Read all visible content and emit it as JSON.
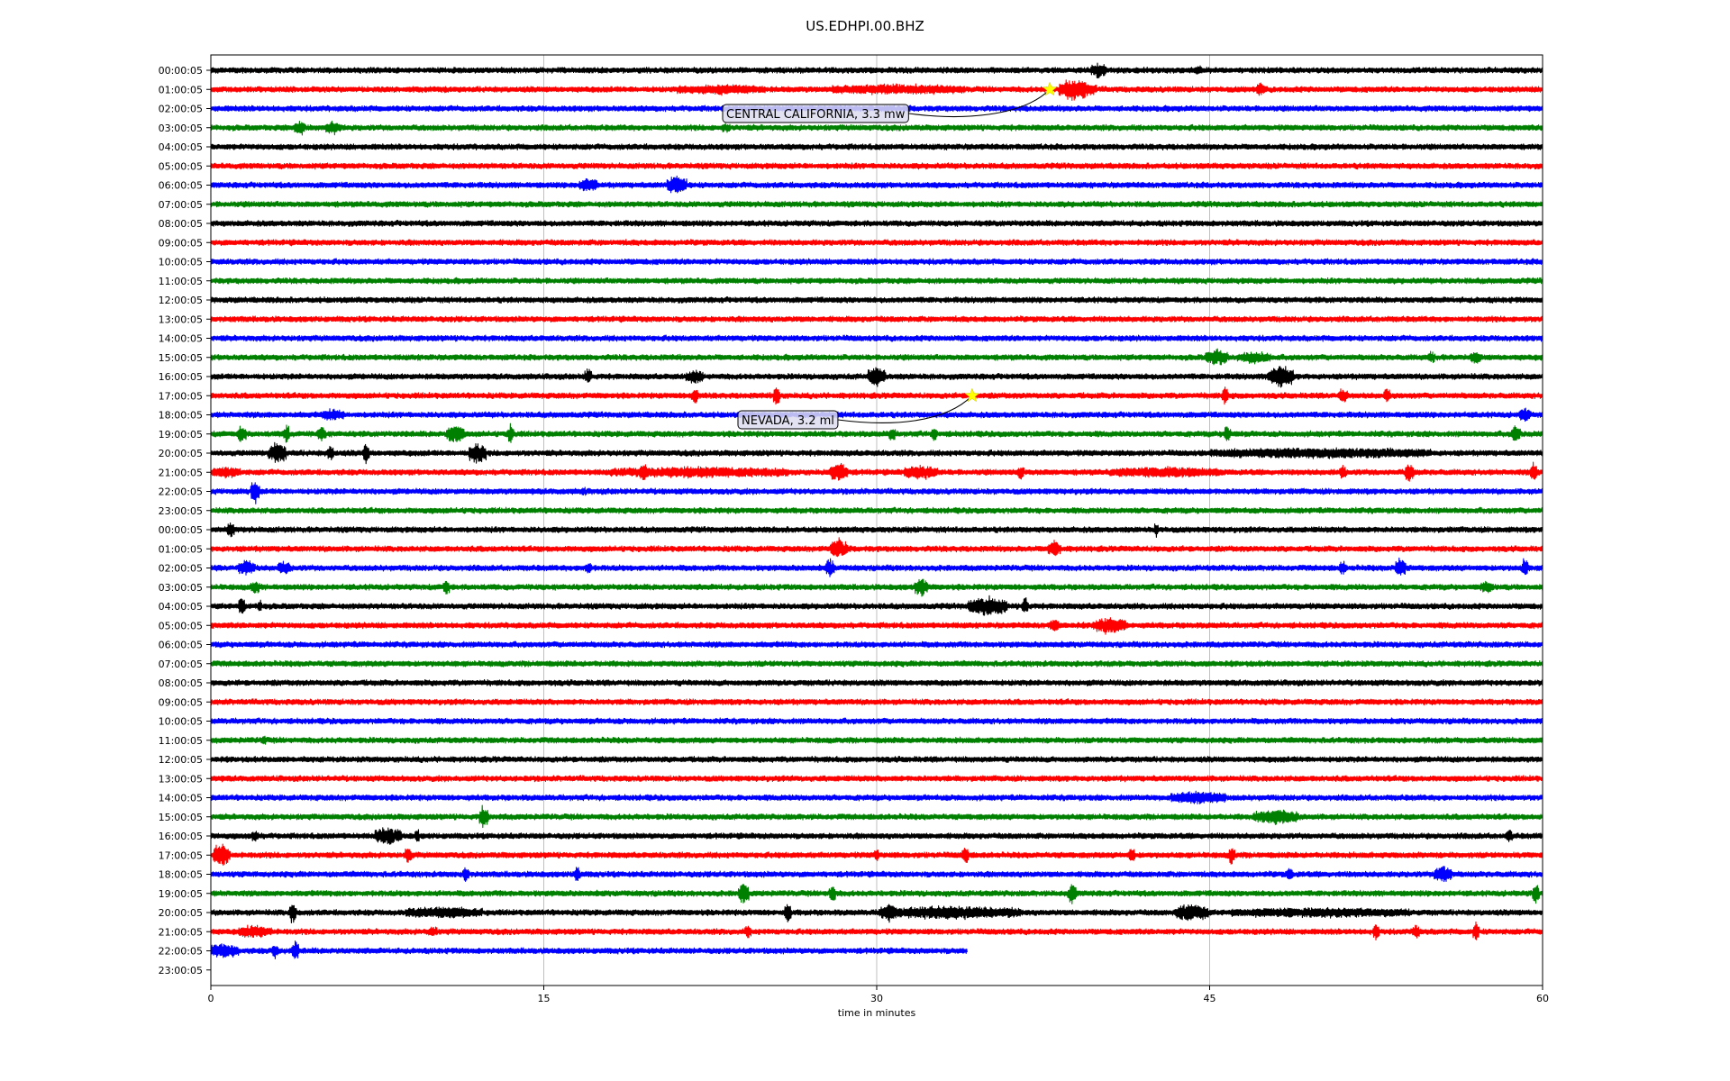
{
  "chart_data": {
    "type": "line",
    "title": "US.EDHPI.00.BHZ",
    "xlabel": "time in minutes",
    "ylabel": "",
    "xlim": [
      0,
      60
    ],
    "xticks": [
      "0",
      "15",
      "30",
      "45",
      "60"
    ],
    "xtick_values": [
      0,
      15,
      30,
      45,
      60
    ],
    "grid": "vertical lines at x ticks",
    "series_colors": [
      "#000000",
      "#ff0000",
      "#0000ff",
      "#008000"
    ],
    "row_labels": [
      "00:00:05",
      "01:00:05",
      "02:00:05",
      "03:00:05",
      "04:00:05",
      "05:00:05",
      "06:00:05",
      "07:00:05",
      "08:00:05",
      "09:00:05",
      "10:00:05",
      "11:00:05",
      "12:00:05",
      "13:00:05",
      "14:00:05",
      "15:00:05",
      "16:00:05",
      "17:00:05",
      "18:00:05",
      "19:00:05",
      "20:00:05",
      "21:00:05",
      "22:00:05",
      "23:00:05",
      "00:00:05",
      "01:00:05",
      "02:00:05",
      "03:00:05",
      "04:00:05",
      "05:00:05",
      "06:00:05",
      "07:00:05",
      "08:00:05",
      "09:00:05",
      "10:00:05",
      "11:00:05",
      "12:00:05",
      "13:00:05",
      "14:00:05",
      "15:00:05",
      "16:00:05",
      "17:00:05",
      "18:00:05",
      "19:00:05",
      "20:00:05",
      "21:00:05",
      "22:00:05",
      "23:00:05"
    ],
    "last_row_end_minute": 34.1,
    "events": [
      {
        "row": 1,
        "minute": 37.8,
        "label": "CENTRAL CALIFORNIA, 3.3 mw",
        "marker_color": "#ffff00"
      },
      {
        "row": 17,
        "minute": 34.3,
        "label": "NEVADA, 3.2 ml",
        "marker_color": "#ffff00"
      }
    ],
    "bursts": [
      [
        0,
        40,
        0.7,
        0.6
      ],
      [
        0,
        44.5,
        0.3,
        0.4
      ],
      [
        1,
        38.8,
        1.2,
        1.0
      ],
      [
        1,
        39.5,
        0.8,
        0.5
      ],
      [
        1,
        23,
        4,
        0.3
      ],
      [
        1,
        31,
        6,
        0.3
      ],
      [
        1,
        47.3,
        0.4,
        0.5
      ],
      [
        3,
        4,
        0.5,
        0.7
      ],
      [
        3,
        5.5,
        0.7,
        0.5
      ],
      [
        3,
        23.2,
        0.4,
        0.3
      ],
      [
        6,
        17,
        0.8,
        0.6
      ],
      [
        6,
        21,
        0.9,
        0.9
      ],
      [
        15,
        45.3,
        1.0,
        0.7
      ],
      [
        15,
        47,
        1.5,
        0.4
      ],
      [
        15,
        55,
        0.3,
        0.5
      ],
      [
        15,
        57,
        0.5,
        0.4
      ],
      [
        16,
        17,
        0.3,
        0.8
      ],
      [
        16,
        21.8,
        0.8,
        0.5
      ],
      [
        16,
        30,
        0.8,
        0.9
      ],
      [
        16,
        48.2,
        1.2,
        1.0
      ],
      [
        17,
        21.8,
        0.3,
        0.8
      ],
      [
        17,
        25.5,
        0.3,
        0.9
      ],
      [
        17,
        45.7,
        0.3,
        0.9
      ],
      [
        17,
        51,
        0.4,
        0.6
      ],
      [
        17,
        53,
        0.3,
        0.6
      ],
      [
        18,
        5.5,
        1,
        0.4
      ],
      [
        18,
        59.2,
        0.5,
        0.6
      ],
      [
        19,
        1.4,
        0.4,
        0.8
      ],
      [
        19,
        3.4,
        0.3,
        0.9
      ],
      [
        19,
        5,
        0.4,
        0.6
      ],
      [
        19,
        11,
        0.8,
        0.9
      ],
      [
        19,
        13.5,
        0.3,
        0.9
      ],
      [
        19,
        30.7,
        0.3,
        0.6
      ],
      [
        19,
        32.6,
        0.3,
        0.6
      ],
      [
        19,
        45.8,
        0.3,
        0.9
      ],
      [
        19,
        58.8,
        0.4,
        0.8
      ],
      [
        20,
        3,
        0.8,
        1.0
      ],
      [
        20,
        5.4,
        0.3,
        0.8
      ],
      [
        20,
        7,
        0.3,
        1.0
      ],
      [
        20,
        12,
        0.8,
        1.0
      ],
      [
        20,
        50,
        10,
        0.35
      ],
      [
        21,
        0.7,
        1.3,
        0.4
      ],
      [
        21,
        19.5,
        0.3,
        0.6
      ],
      [
        21,
        28.3,
        0.8,
        1.0
      ],
      [
        21,
        22,
        8,
        0.35
      ],
      [
        21,
        32,
        1.5,
        0.6
      ],
      [
        21,
        36.5,
        0.3,
        0.6
      ],
      [
        21,
        43,
        5,
        0.35
      ],
      [
        21,
        51,
        0.3,
        0.6
      ],
      [
        21,
        54,
        0.4,
        0.9
      ],
      [
        21,
        59.6,
        0.3,
        1.0
      ],
      [
        22,
        2,
        0.4,
        1.1
      ],
      [
        22,
        16.8,
        0.2,
        0.3
      ],
      [
        24,
        0.9,
        0.3,
        0.8
      ],
      [
        24,
        42.6,
        0.2,
        0.6
      ],
      [
        25,
        28.3,
        0.8,
        0.9
      ],
      [
        25,
        38,
        0.6,
        0.7
      ],
      [
        26,
        1.6,
        0.8,
        0.6
      ],
      [
        26,
        3.3,
        0.6,
        0.5
      ],
      [
        26,
        17,
        0.3,
        0.5
      ],
      [
        26,
        27.9,
        0.4,
        0.8
      ],
      [
        26,
        51,
        0.3,
        0.6
      ],
      [
        26,
        53.6,
        0.5,
        1.0
      ],
      [
        26,
        59.2,
        0.3,
        1.0
      ],
      [
        27,
        2,
        0.4,
        0.5
      ],
      [
        27,
        10.6,
        0.3,
        0.7
      ],
      [
        27,
        32,
        0.6,
        0.9
      ],
      [
        27,
        57.5,
        0.6,
        0.4
      ],
      [
        28,
        1.4,
        0.3,
        0.8
      ],
      [
        28,
        2.2,
        0.2,
        0.6
      ],
      [
        28,
        35,
        1.8,
        0.8
      ],
      [
        28,
        36.7,
        0.3,
        0.9
      ],
      [
        29,
        38,
        0.4,
        0.5
      ],
      [
        29,
        40.5,
        1.5,
        0.7
      ],
      [
        35,
        2.4,
        0.2,
        0.4
      ],
      [
        38,
        44.5,
        2.5,
        0.5
      ],
      [
        39,
        12.3,
        0.4,
        1.1
      ],
      [
        39,
        48,
        2,
        0.6
      ],
      [
        40,
        2,
        0.3,
        0.5
      ],
      [
        40,
        8,
        1.2,
        0.8
      ],
      [
        40,
        9.3,
        0.2,
        0.6
      ],
      [
        40,
        58.5,
        0.3,
        0.5
      ],
      [
        41,
        0.5,
        0.8,
        1.2
      ],
      [
        41,
        8.9,
        0.3,
        0.8
      ],
      [
        41,
        30,
        0.2,
        0.6
      ],
      [
        41,
        34,
        0.3,
        0.8
      ],
      [
        41,
        41.5,
        0.3,
        0.6
      ],
      [
        41,
        46,
        0.3,
        0.8
      ],
      [
        42,
        11.5,
        0.3,
        0.6
      ],
      [
        42,
        16.5,
        0.3,
        0.7
      ],
      [
        42,
        48.6,
        0.3,
        0.5
      ],
      [
        42,
        55.5,
        0.8,
        0.8
      ],
      [
        43,
        24,
        0.5,
        1.0
      ],
      [
        43,
        28,
        0.3,
        0.9
      ],
      [
        43,
        38.8,
        0.4,
        0.9
      ],
      [
        43,
        59.7,
        0.3,
        1.0
      ],
      [
        44,
        3.7,
        0.3,
        1.1
      ],
      [
        44,
        10.5,
        3.5,
        0.4
      ],
      [
        44,
        26,
        0.3,
        1.0
      ],
      [
        44,
        30.5,
        0.8,
        0.7
      ],
      [
        44,
        33.5,
        6,
        0.5
      ],
      [
        44,
        44.2,
        1.5,
        0.8
      ],
      [
        44,
        50,
        8,
        0.3
      ],
      [
        45,
        2,
        1.5,
        0.5
      ],
      [
        45,
        10,
        0.4,
        0.4
      ],
      [
        45,
        24.2,
        0.3,
        0.5
      ],
      [
        45,
        52.5,
        0.3,
        0.7
      ],
      [
        45,
        54.3,
        0.3,
        0.7
      ],
      [
        45,
        57,
        0.3,
        0.9
      ],
      [
        46,
        0.5,
        1.5,
        0.6
      ],
      [
        46,
        3.8,
        0.3,
        1.0
      ],
      [
        46,
        2.9,
        0.3,
        0.6
      ]
    ]
  }
}
